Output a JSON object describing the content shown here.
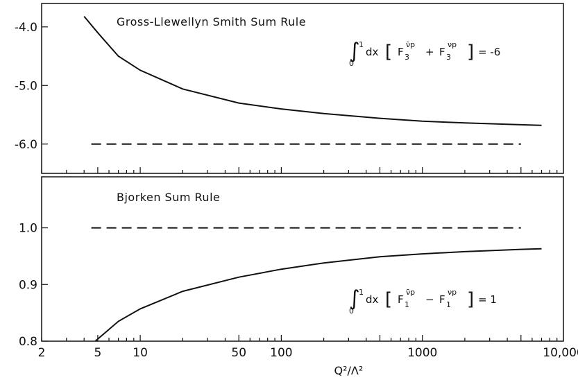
{
  "chart_data": [
    {
      "type": "line",
      "panel": "top",
      "title": "Gross-Llewellyn Smith Sum Rule",
      "formula": {
        "integral_lower": "0",
        "integral_upper": "1",
        "prefix": "dx",
        "term1_base": "F",
        "term1_sub": "3",
        "term1_sup": "ν̄p",
        "operator": "+",
        "term2_base": "F",
        "term2_sub": "3",
        "term2_sup": "νp",
        "equals": "= -6"
      },
      "xscale": "log",
      "xlim": [
        2,
        10000
      ],
      "ylim": [
        -6.5,
        -3.6
      ],
      "yticks": [
        {
          "value": -4.0,
          "label": "-4.0"
        },
        {
          "value": -5.0,
          "label": "-5.0"
        },
        {
          "value": -6.0,
          "label": "-6.0"
        }
      ],
      "series": [
        {
          "style": "solid",
          "x": [
            4,
            5,
            7,
            10,
            20,
            50,
            100,
            200,
            500,
            1000,
            2000,
            5000,
            7000
          ],
          "y": [
            -3.82,
            -4.1,
            -4.5,
            -4.74,
            -5.06,
            -5.3,
            -5.4,
            -5.48,
            -5.56,
            -5.61,
            -5.64,
            -5.67,
            -5.68
          ]
        },
        {
          "style": "dashed",
          "x": [
            4.5,
            5000
          ],
          "y": [
            -6.0,
            -6.0
          ]
        }
      ]
    },
    {
      "type": "line",
      "panel": "bottom",
      "title": "Bjorken Sum Rule",
      "formula": {
        "integral_lower": "0",
        "integral_upper": "1",
        "prefix": "dx",
        "term1_base": "F",
        "term1_sub": "1",
        "term1_sup": "ν̄p",
        "operator": "−",
        "term2_base": "F",
        "term2_sub": "1",
        "term2_sup": "νp",
        "equals": "= 1"
      },
      "xscale": "log",
      "xlim": [
        2,
        10000
      ],
      "ylim": [
        0.8,
        1.09
      ],
      "yticks": [
        {
          "value": 1.0,
          "label": "1.0"
        },
        {
          "value": 0.9,
          "label": "0.9"
        },
        {
          "value": 0.8,
          "label": "0.8"
        }
      ],
      "xticks": [
        {
          "value": 2,
          "label": "2"
        },
        {
          "value": 5,
          "label": "5"
        },
        {
          "value": 10,
          "label": "10"
        },
        {
          "value": 50,
          "label": "50"
        },
        {
          "value": 100,
          "label": "100"
        },
        {
          "value": 1000,
          "label": "1000"
        },
        {
          "value": 10000,
          "label": "10,000"
        }
      ],
      "xlabel": "Q²/Λ²",
      "series": [
        {
          "style": "solid",
          "x": [
            4.8,
            7,
            10,
            20,
            50,
            100,
            200,
            500,
            1000,
            2000,
            5000,
            7000
          ],
          "y": [
            0.8,
            0.835,
            0.857,
            0.888,
            0.913,
            0.927,
            0.938,
            0.949,
            0.954,
            0.958,
            0.962,
            0.963
          ]
        },
        {
          "style": "dashed",
          "x": [
            4.5,
            5000
          ],
          "y": [
            1.0,
            1.0
          ]
        }
      ]
    }
  ]
}
